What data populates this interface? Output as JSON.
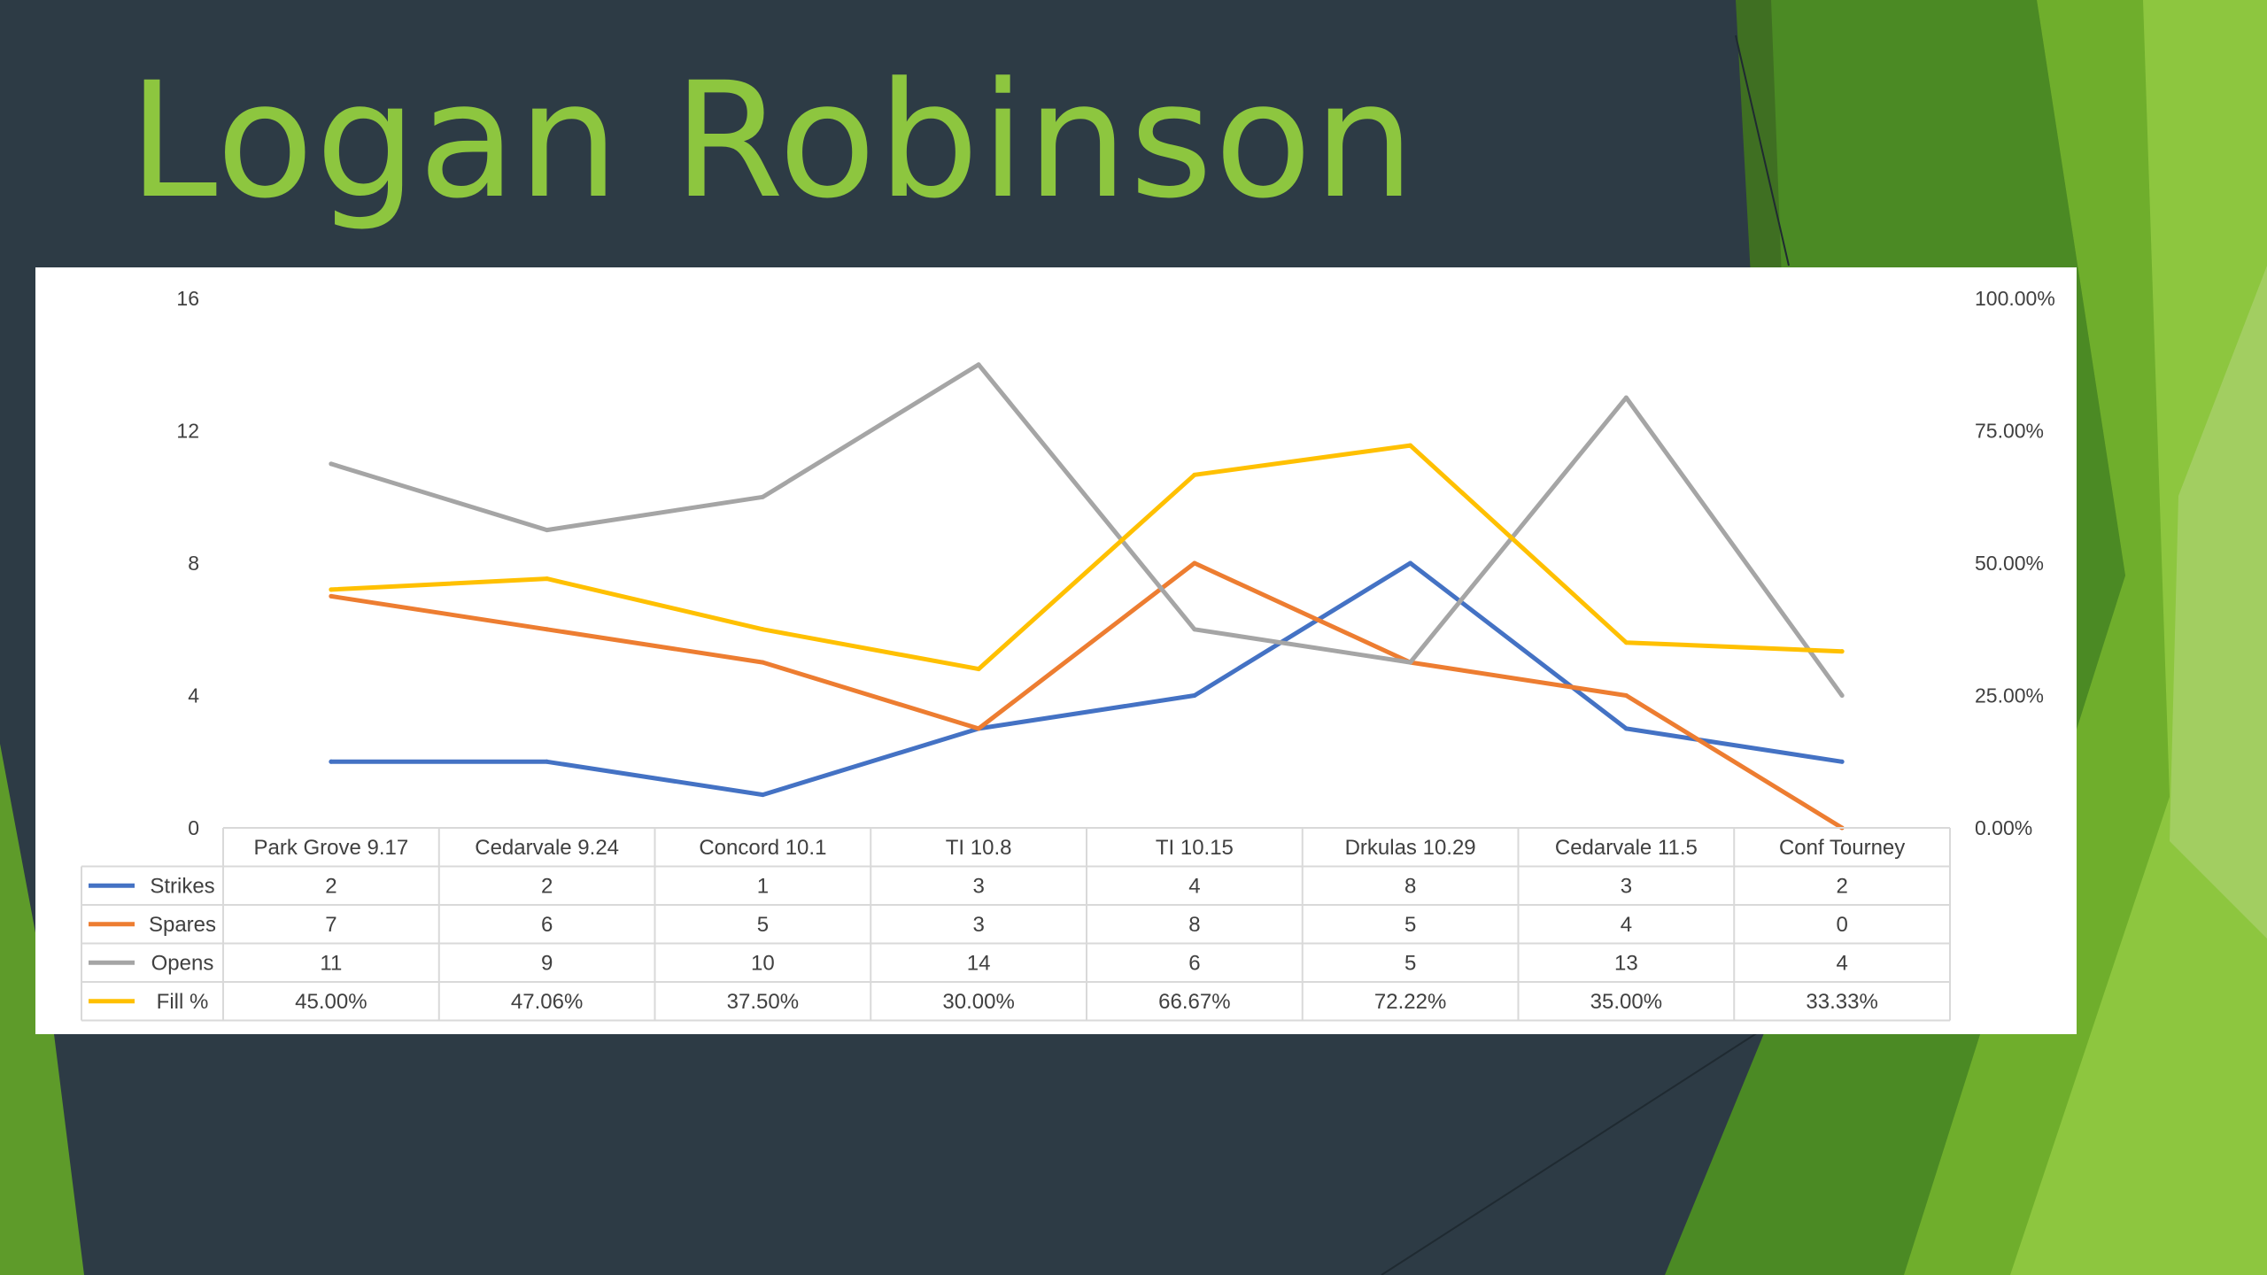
{
  "slide": {
    "title": "Logan Robinson"
  },
  "colors": {
    "background": "#2d3b45",
    "title": "#8dc63f",
    "strikes": "#4472c4",
    "spares": "#ed7d31",
    "opens": "#a5a5a5",
    "fill": "#ffc000",
    "table_border": "#d9d9d9",
    "text": "#404040"
  },
  "chart_data": {
    "type": "line",
    "categories": [
      "Park Grove 9.17",
      "Cedarvale 9.24",
      "Concord 10.1",
      "TI 10.8",
      "TI 10.15",
      "Drkulas 10.29",
      "Cedarvale 11.5",
      "Conf Tourney"
    ],
    "series": [
      {
        "name": "Strikes",
        "axis": "primary",
        "values": [
          2,
          2,
          1,
          3,
          4,
          8,
          3,
          2
        ],
        "labels": [
          "2",
          "2",
          "1",
          "3",
          "4",
          "8",
          "3",
          "2"
        ]
      },
      {
        "name": "Spares",
        "axis": "primary",
        "values": [
          7,
          6,
          5,
          3,
          8,
          5,
          4,
          0
        ],
        "labels": [
          "7",
          "6",
          "5",
          "3",
          "8",
          "5",
          "4",
          "0"
        ]
      },
      {
        "name": "Opens",
        "axis": "primary",
        "values": [
          11,
          9,
          10,
          14,
          6,
          5,
          13,
          4
        ],
        "labels": [
          "11",
          "9",
          "10",
          "14",
          "6",
          "5",
          "13",
          "4"
        ]
      },
      {
        "name": "Fill %",
        "axis": "secondary",
        "values": [
          45.0,
          47.06,
          37.5,
          30.0,
          66.67,
          72.22,
          35.0,
          33.33
        ],
        "labels": [
          "45.00%",
          "47.06%",
          "37.50%",
          "30.00%",
          "66.67%",
          "72.22%",
          "35.00%",
          "33.33%"
        ]
      }
    ],
    "y_left": {
      "range": [
        0,
        16
      ],
      "ticks": [
        "0",
        "4",
        "8",
        "12",
        "16"
      ]
    },
    "y_right": {
      "range": [
        0,
        100
      ],
      "ticks": [
        "0.00%",
        "25.00%",
        "50.00%",
        "75.00%",
        "100.00%"
      ]
    },
    "grid": false,
    "legend": "data-table",
    "data_table": true
  }
}
